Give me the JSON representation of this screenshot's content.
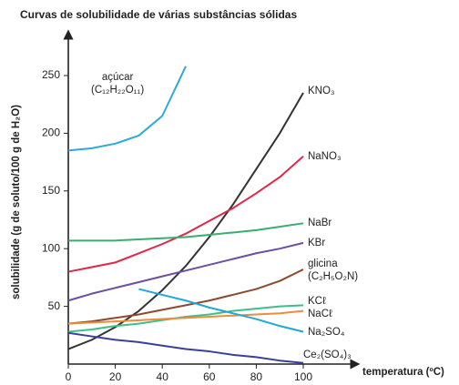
{
  "chart_data": {
    "type": "line",
    "title": "Curvas de solubilidade de várias substâncias sólidas",
    "x_label": "temperatura (ºC)",
    "y_label": "solubilidade (g de soluto/100 g de H₂O)",
    "x": [
      0,
      10,
      20,
      30,
      40,
      50,
      60,
      70,
      80,
      90,
      100
    ],
    "xlim": [
      0,
      122
    ],
    "xticks": [
      0,
      20,
      40,
      60,
      80,
      100
    ],
    "ylim": [
      0,
      288
    ],
    "yticks": [
      50,
      100,
      150,
      200,
      250
    ],
    "series": [
      {
        "name": "açúcar\n(C₁₂H₂₂O₁₁)",
        "color": "#2aabd8",
        "values": [
          185,
          187,
          191,
          198,
          215,
          258,
          null,
          null,
          null,
          null,
          null
        ]
      },
      {
        "name": "KNO₃",
        "color": "#333333",
        "values": [
          13,
          21,
          32,
          46,
          64,
          85,
          110,
          138,
          169,
          200,
          235
        ]
      },
      {
        "name": "NaNO₃",
        "color": "#e2264a",
        "values": [
          80,
          84,
          88,
          96,
          104,
          113,
          124,
          135,
          148,
          162,
          180
        ]
      },
      {
        "name": "NaBr",
        "color": "#3aae6e",
        "values": [
          107,
          107,
          107,
          108,
          109,
          110,
          112,
          114,
          116,
          119,
          122
        ]
      },
      {
        "name": "KBr",
        "color": "#6a4fa5",
        "values": [
          55,
          61,
          66,
          71,
          76,
          81,
          86,
          91,
          96,
          100,
          105
        ]
      },
      {
        "name": "glicina\n(C₂H₅O₂N)",
        "color": "#8b4a2b",
        "values": [
          35,
          37,
          40,
          43,
          47,
          51,
          55,
          60,
          65,
          72,
          82
        ]
      },
      {
        "name": "KCℓ",
        "color": "#3dbf8a",
        "values": [
          28,
          30,
          33,
          35,
          38,
          41,
          43,
          46,
          48,
          50,
          51
        ]
      },
      {
        "name": "NaCℓ",
        "color": "#f08a3c",
        "values": [
          35,
          36,
          37,
          38,
          39,
          40,
          41,
          42,
          43,
          44,
          46
        ]
      },
      {
        "name": "Na₂SO₄",
        "color": "#1fa8d8",
        "values": [
          null,
          null,
          null,
          65,
          60,
          55,
          49,
          44,
          39,
          33,
          28
        ]
      },
      {
        "name": "Ce₂(SO₄)₃",
        "color": "#3a3f9a",
        "values": [
          27,
          24,
          21,
          19,
          16,
          13,
          11,
          8,
          6,
          3,
          1
        ]
      }
    ]
  }
}
